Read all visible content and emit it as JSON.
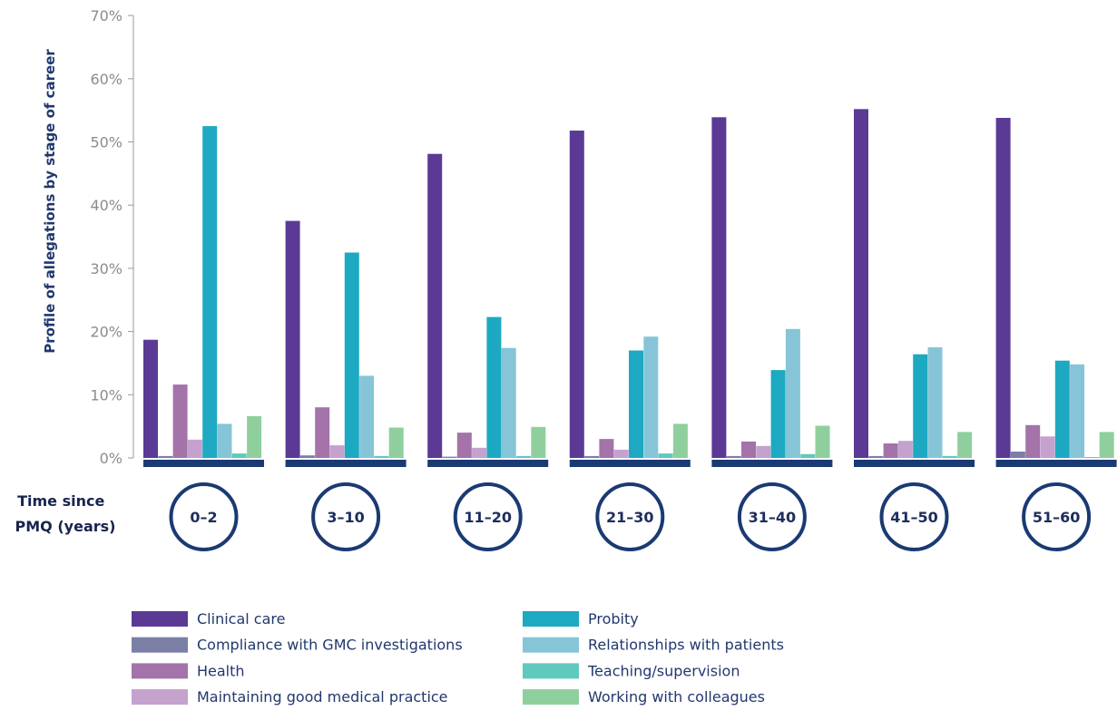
{
  "chart_data": {
    "type": "bar",
    "ylabel": "Profile of allegations by stage of career",
    "xlabel_lines": [
      "Time since",
      "PMQ (years)"
    ],
    "ylim": [
      0,
      70
    ],
    "yticks": [
      0,
      10,
      20,
      30,
      40,
      50,
      60,
      70
    ],
    "ytick_labels": [
      "0%",
      "10%",
      "20%",
      "30%",
      "40%",
      "50%",
      "60%",
      "70%"
    ],
    "categories": [
      "0–2",
      "3–10",
      "11–20",
      "21–30",
      "31–40",
      "41–50",
      "51–60"
    ],
    "series": [
      {
        "name": "Clinical care",
        "color": "#5b3a96",
        "values": [
          18.7,
          37.5,
          48.1,
          51.8,
          53.9,
          55.2,
          53.8
        ]
      },
      {
        "name": "Compliance with GMC investigations",
        "color": "#7b7fa6",
        "values": [
          0.3,
          0.4,
          0.2,
          0.3,
          0.3,
          0.3,
          1.0
        ]
      },
      {
        "name": "Health",
        "color": "#a373a9",
        "values": [
          11.6,
          8.0,
          4.0,
          3.0,
          2.6,
          2.3,
          5.2
        ]
      },
      {
        "name": "Maintaining good medical practice",
        "color": "#c5a1cd",
        "values": [
          2.9,
          2.0,
          1.6,
          1.3,
          1.9,
          2.7,
          3.4
        ]
      },
      {
        "name": "Probity",
        "color": "#1da9c1",
        "values": [
          52.5,
          32.5,
          22.3,
          17.0,
          13.9,
          16.4,
          15.4
        ]
      },
      {
        "name": "Relationships with patients",
        "color": "#86c5d8",
        "values": [
          5.4,
          13.0,
          17.4,
          19.2,
          20.4,
          17.5,
          14.8
        ]
      },
      {
        "name": "Teaching/supervision",
        "color": "#5fc9bd",
        "values": [
          0.7,
          0.3,
          0.3,
          0.7,
          0.6,
          0.3,
          0.0
        ]
      },
      {
        "name": "Working with colleagues",
        "color": "#8fcf9d",
        "values": [
          6.6,
          4.8,
          4.9,
          5.4,
          5.1,
          4.1,
          4.1
        ]
      }
    ],
    "grid": false,
    "legend_position": "bottom"
  }
}
